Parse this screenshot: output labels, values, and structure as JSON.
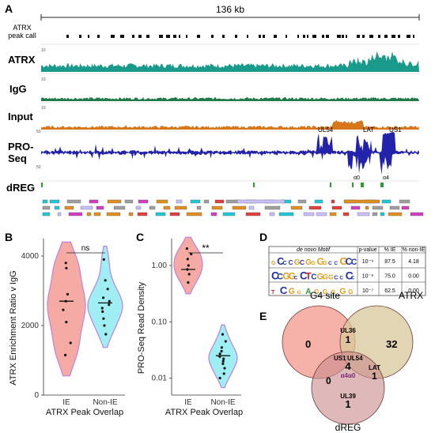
{
  "panel_a": {
    "letter": "A",
    "scale_label": "136 kb",
    "tracks": {
      "peak_call": "ATRX\npeak call",
      "atrx": "ATRX",
      "igg": "IgG",
      "input": "Input",
      "proseq": "PRO-\nSeq",
      "dreg": "dREG"
    },
    "scale_values": {
      "atrx": "10",
      "igg": "10",
      "input": "10",
      "pro_pos": "50",
      "pro_neg": "50"
    },
    "gene_labels": [
      "UL54",
      "LAT",
      "US1",
      "α0",
      "α4"
    ],
    "colors": {
      "atrx": "#1a9a8a",
      "igg": "#1f7a4a",
      "input": "#d8761a",
      "proseq": "#2222aa",
      "dreg": "#2aa02a"
    }
  },
  "panel_b": {
    "letter": "B",
    "chart_data": {
      "type": "violin",
      "categories": [
        "IE",
        "Non-IE"
      ],
      "ylabel": "ATRX Enrichment Ratio v IgG",
      "xlabel": "ATRX Peak Overlap",
      "ylim": [
        0,
        4500
      ],
      "yticks": [
        0,
        2000,
        4000
      ],
      "significance": "ns",
      "medians": [
        2700,
        2650
      ],
      "points": [
        [
          3800,
          3650,
          2900,
          2450,
          2100,
          1500,
          1150,
          2700
        ],
        [
          3900,
          3300,
          3050,
          2800,
          2700,
          2600,
          2500,
          2400,
          2200,
          2000,
          1750
        ]
      ],
      "colors": [
        "#f28e86",
        "#7ee8f0"
      ]
    }
  },
  "panel_c": {
    "letter": "C",
    "chart_data": {
      "type": "violin",
      "categories": [
        "IE",
        "Non-IE"
      ],
      "ylabel": "PRO-Seq Read Density",
      "xlabel": "ATRX Peak Overlap",
      "yscale": "log",
      "ylim": [
        0.005,
        3
      ],
      "yticks": [
        "0.01",
        "0.10",
        "1.00"
      ],
      "significance": "**",
      "medians": [
        0.85,
        0.025
      ],
      "points": [
        [
          2.0,
          1.3,
          1.0,
          0.85,
          0.7,
          0.5,
          1.6
        ],
        [
          0.06,
          0.045,
          0.035,
          0.03,
          0.027,
          0.024,
          0.022,
          0.02,
          0.018,
          0.015,
          0.012,
          0.01
        ]
      ],
      "colors": [
        "#f28e86",
        "#7ee8f0"
      ]
    }
  },
  "panel_d": {
    "letter": "D",
    "headers": [
      "de novo Motif",
      "p-value",
      "% IE",
      "% non-IE"
    ],
    "rows": [
      {
        "motif": "GCCCGCGGGGCCGCC",
        "p_value": "10⁻⁹",
        "pct_ie": "87.5",
        "pct_non_ie": "4.18"
      },
      {
        "motif": "CCGGCCTCGGGCCCC",
        "p_value": "10⁻⁹",
        "pct_ie": "75.0",
        "pct_non_ie": "0.00"
      },
      {
        "motif": "TCGGAGGGGG",
        "p_value": "10⁻⁷",
        "pct_ie": "62.5",
        "pct_non_ie": "0.00"
      }
    ]
  },
  "panel_e": {
    "letter": "E",
    "sets": [
      "G4 site",
      "ATRX",
      "dREG"
    ],
    "counts": {
      "g4_only": "0",
      "atrx_only": "32",
      "dreg_only": "1",
      "g4_atrx": "1",
      "g4_dreg": "0",
      "atrx_dreg": "1",
      "all": "4"
    },
    "region_labels": {
      "g4_atrx": "UL36",
      "all_top": "US1",
      "all_top2": "UL54",
      "all_bottom": "α4α0",
      "atrx_dreg": "LAT",
      "dreg_only": "UL39"
    },
    "colors": {
      "g4": "#f4a49a",
      "atrx": "#d8c79a",
      "dreg": "#c98a8a"
    }
  }
}
